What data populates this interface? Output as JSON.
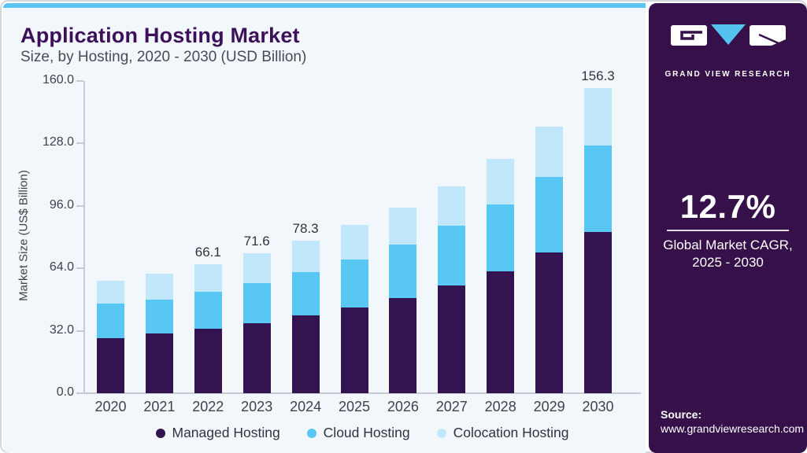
{
  "header": {
    "title": "Application Hosting Market",
    "subtitle": "Size, by Hosting, 2020 - 2030 (USD Billion)"
  },
  "sidebar": {
    "logo_text": "GRAND VIEW RESEARCH",
    "cagr_value": "12.7%",
    "cagr_label_line1": "Global Market CAGR,",
    "cagr_label_line2": "2025 - 2030",
    "source_label": "Source:",
    "source_url": "www.grandviewresearch.com",
    "bg_color": "#351049",
    "accent_blue": "#56c2f0"
  },
  "chart_data": {
    "type": "bar",
    "stacked": true,
    "title": "Application Hosting Market Size, by Hosting, 2020 - 2030 (USD Billion)",
    "ylabel": "Market Size (US$ Billion)",
    "categories": [
      "2020",
      "2021",
      "2022",
      "2023",
      "2024",
      "2025",
      "2026",
      "2027",
      "2028",
      "2029",
      "2030"
    ],
    "series": [
      {
        "name": "Managed Hosting",
        "color": "#331350",
        "values": [
          28.4,
          30.6,
          33.0,
          36.0,
          39.7,
          44.1,
          48.9,
          55.2,
          62.5,
          72.0,
          82.7
        ]
      },
      {
        "name": "Cloud Hosting",
        "color": "#59c7f4",
        "values": [
          17.4,
          17.4,
          18.8,
          20.6,
          22.5,
          24.6,
          27.3,
          30.6,
          34.3,
          38.7,
          44.3
        ]
      },
      {
        "name": "Colocation Hosting",
        "color": "#c0e7fa",
        "values": [
          11.8,
          13.3,
          14.3,
          15.0,
          16.1,
          17.4,
          18.8,
          20.1,
          23.3,
          25.9,
          29.3
        ]
      }
    ],
    "totals": [
      57.6,
      61.3,
      66.1,
      71.6,
      78.3,
      86.1,
      95.0,
      105.9,
      120.1,
      136.6,
      156.3
    ],
    "value_labels": [
      "",
      "",
      "66.1",
      "71.6",
      "78.3",
      "",
      "",
      "",
      "",
      "",
      "156.3"
    ],
    "ytick_labels": [
      "0.0",
      "32.0",
      "64.0",
      "96.0",
      "128.0",
      "160.0"
    ],
    "ytick_values": [
      0,
      32,
      64,
      96,
      128,
      160
    ],
    "ylim": [
      0,
      160
    ],
    "grid": false,
    "legend_position": "bottom"
  }
}
